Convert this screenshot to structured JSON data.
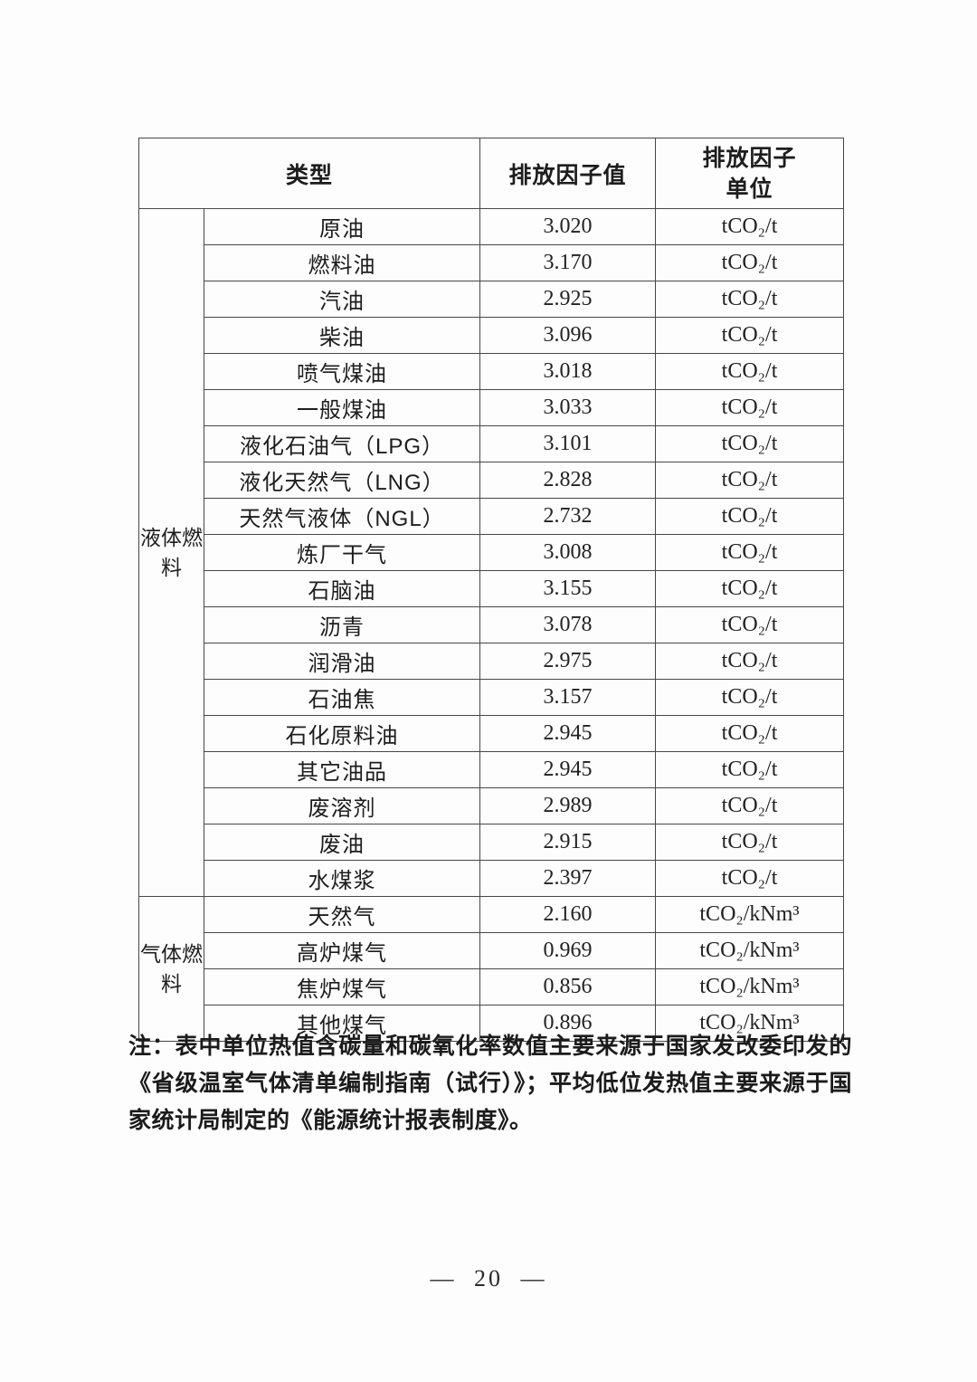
{
  "page": {
    "page_number": "— 20 —"
  },
  "table": {
    "header": {
      "type_label": "类型",
      "factor_value_label": "排放因子值",
      "factor_unit_line1": "排放因子",
      "factor_unit_line2": "单位"
    },
    "groups": [
      {
        "label": "液体燃料",
        "rows": [
          {
            "name": "原油",
            "value": "3.020",
            "unit": "tCO₂/t"
          },
          {
            "name": "燃料油",
            "value": "3.170",
            "unit": "tCO₂/t"
          },
          {
            "name": "汽油",
            "value": "2.925",
            "unit": "tCO₂/t"
          },
          {
            "name": "柴油",
            "value": "3.096",
            "unit": "tCO₂/t"
          },
          {
            "name": "喷气煤油",
            "value": "3.018",
            "unit": "tCO₂/t"
          },
          {
            "name": "一般煤油",
            "value": "3.033",
            "unit": "tCO₂/t"
          },
          {
            "name": "液化石油气（LPG）",
            "value": "3.101",
            "unit": "tCO₂/t"
          },
          {
            "name": "液化天然气（LNG）",
            "value": "2.828",
            "unit": "tCO₂/t"
          },
          {
            "name": "天然气液体（NGL）",
            "value": "2.732",
            "unit": "tCO₂/t"
          },
          {
            "name": "炼厂干气",
            "value": "3.008",
            "unit": "tCO₂/t"
          },
          {
            "name": "石脑油",
            "value": "3.155",
            "unit": "tCO₂/t"
          },
          {
            "name": "沥青",
            "value": "3.078",
            "unit": "tCO₂/t"
          },
          {
            "name": "润滑油",
            "value": "2.975",
            "unit": "tCO₂/t"
          },
          {
            "name": "石油焦",
            "value": "3.157",
            "unit": "tCO₂/t"
          },
          {
            "name": "石化原料油",
            "value": "2.945",
            "unit": "tCO₂/t"
          },
          {
            "name": "其它油品",
            "value": "2.945",
            "unit": "tCO₂/t"
          },
          {
            "name": "废溶剂",
            "value": "2.989",
            "unit": "tCO₂/t"
          },
          {
            "name": "废油",
            "value": "2.915",
            "unit": "tCO₂/t"
          },
          {
            "name": "水煤浆",
            "value": "2.397",
            "unit": "tCO₂/t"
          }
        ]
      },
      {
        "label": "气体燃料",
        "rows": [
          {
            "name": "天然气",
            "value": "2.160",
            "unit": "tCO₂/kNm³"
          },
          {
            "name": "高炉煤气",
            "value": "0.969",
            "unit": "tCO₂/kNm³"
          },
          {
            "name": "焦炉煤气",
            "value": "0.856",
            "unit": "tCO₂/kNm³"
          },
          {
            "name": "其他煤气",
            "value": "0.896",
            "unit": "tCO₂/kNm³"
          }
        ]
      }
    ]
  },
  "footnote": "注：表中单位热值含碳量和碳氧化率数值主要来源于国家发改委印发的《省级温室气体清单编制指南（试行）》；平均低位发热值主要来源于国家统计局制定的《能源统计报表制度》。"
}
